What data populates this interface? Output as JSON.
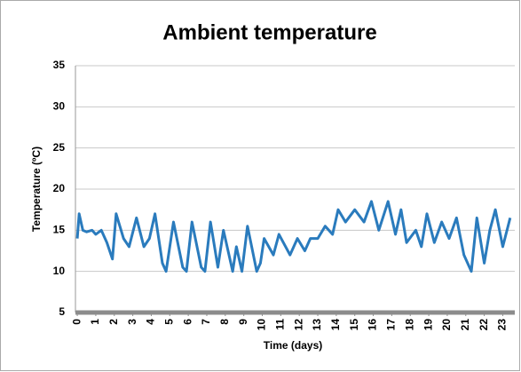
{
  "chart_data": {
    "type": "line",
    "title": "Ambient temperature",
    "x_label": "Time (days)",
    "y_label": "Temperature (ºC)",
    "x": [
      0,
      0.1,
      0.3,
      0.5,
      0.8,
      1,
      1.3,
      1.6,
      1.9,
      2.1,
      2.5,
      2.8,
      3.2,
      3.6,
      3.9,
      4.2,
      4.6,
      4.8,
      5.2,
      5.7,
      5.9,
      6.2,
      6.7,
      6.9,
      7.2,
      7.6,
      7.9,
      8.4,
      8.6,
      8.9,
      9.2,
      9.7,
      9.9,
      10.1,
      10.6,
      10.9,
      11.5,
      11.9,
      12.3,
      12.6,
      13.0,
      13.4,
      13.8,
      14.1,
      14.5,
      15.0,
      15.5,
      15.9,
      16.3,
      16.8,
      17.2,
      17.5,
      17.8,
      18.3,
      18.6,
      18.9,
      19.3,
      19.7,
      20.1,
      20.5,
      20.9,
      21.3,
      21.6,
      22.0,
      22.3,
      22.6,
      23.0,
      23.4
    ],
    "series": [
      {
        "name": "Ambient temperature",
        "color": "#2a7bbd",
        "values": [
          14,
          17,
          15,
          14.8,
          15,
          14.5,
          15,
          13.5,
          11.5,
          17,
          14,
          13,
          16.5,
          13,
          14,
          17,
          11,
          10,
          16,
          10.5,
          10,
          16,
          10.5,
          10,
          16,
          10.5,
          15,
          10,
          13,
          10,
          15.5,
          10,
          11,
          14,
          12,
          14.5,
          12,
          14,
          12.5,
          14,
          14,
          15.5,
          14.5,
          17.5,
          16,
          17.5,
          16,
          18.5,
          15,
          18.5,
          14.5,
          17.5,
          13.5,
          15,
          13,
          17,
          13.5,
          16,
          14,
          16.5,
          12,
          10,
          16.5,
          11,
          15,
          17.5,
          13,
          16.5
        ]
      }
    ],
    "xlim": [
      -0.1,
      23.65
    ],
    "xticks": [
      0,
      1,
      2,
      3,
      4,
      5,
      6,
      7,
      8,
      9,
      10,
      11,
      12,
      13,
      14,
      15,
      16,
      17,
      18,
      19,
      20,
      21,
      22,
      23
    ],
    "ylim": [
      5,
      35
    ],
    "yticks": [
      5,
      10,
      15,
      20,
      25,
      30,
      35
    ],
    "grid": true
  }
}
